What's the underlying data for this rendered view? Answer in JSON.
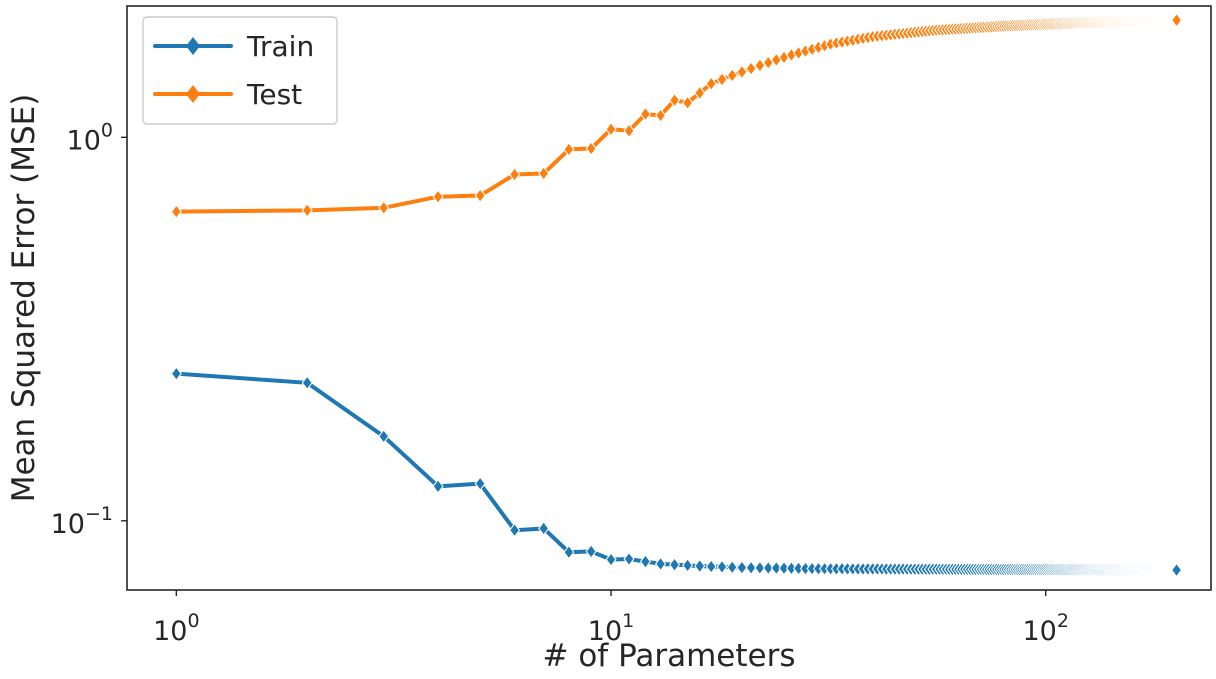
{
  "chart_data": {
    "type": "line",
    "xlabel": "# of Parameters",
    "ylabel": "Mean Squared Error (MSE)",
    "xscale": "log",
    "yscale": "log",
    "xlim": [
      0.77,
      240
    ],
    "ylim": [
      0.066,
      2.2
    ],
    "grid": false,
    "legend_position": "top-left",
    "marker": "diamond",
    "xticks": [
      {
        "value": 1,
        "base": "10",
        "exp": "0"
      },
      {
        "value": 10,
        "base": "10",
        "exp": "1"
      },
      {
        "value": 100,
        "base": "10",
        "exp": "2"
      }
    ],
    "yticks": [
      {
        "value": 1,
        "base": "10",
        "exp": "0"
      },
      {
        "value": 0.1,
        "base": "10",
        "exp": "−1"
      }
    ],
    "x_range": [
      1,
      200
    ],
    "series": [
      {
        "name": "Train",
        "color": "#1f77b4",
        "anchors": [
          [
            1,
            0.242
          ],
          [
            2,
            0.229
          ],
          [
            3,
            0.166
          ],
          [
            4,
            0.123
          ],
          [
            5,
            0.125
          ],
          [
            6,
            0.0945
          ],
          [
            7,
            0.0955
          ],
          [
            8,
            0.0828
          ],
          [
            9,
            0.0832
          ],
          [
            10,
            0.0792
          ],
          [
            11,
            0.0795
          ],
          [
            13,
            0.0772
          ],
          [
            16,
            0.0762
          ],
          [
            20,
            0.0755
          ],
          [
            30,
            0.075
          ],
          [
            50,
            0.0748
          ],
          [
            100,
            0.0746
          ],
          [
            200,
            0.0744
          ]
        ]
      },
      {
        "name": "Test",
        "color": "#ff7f0e",
        "anchors": [
          [
            1,
            0.64
          ],
          [
            2,
            0.645
          ],
          [
            3,
            0.655
          ],
          [
            4,
            0.7
          ],
          [
            5,
            0.705
          ],
          [
            6,
            0.8
          ],
          [
            7,
            0.805
          ],
          [
            8,
            0.93
          ],
          [
            9,
            0.935
          ],
          [
            10,
            1.05
          ],
          [
            11,
            1.04
          ],
          [
            12,
            1.15
          ],
          [
            13,
            1.14
          ],
          [
            14,
            1.25
          ],
          [
            15,
            1.23
          ],
          [
            17,
            1.38
          ],
          [
            19,
            1.45
          ],
          [
            22,
            1.54
          ],
          [
            26,
            1.64
          ],
          [
            32,
            1.75
          ],
          [
            40,
            1.83
          ],
          [
            55,
            1.9
          ],
          [
            80,
            1.95
          ],
          [
            120,
            1.99
          ],
          [
            200,
            2.02
          ]
        ]
      }
    ]
  }
}
